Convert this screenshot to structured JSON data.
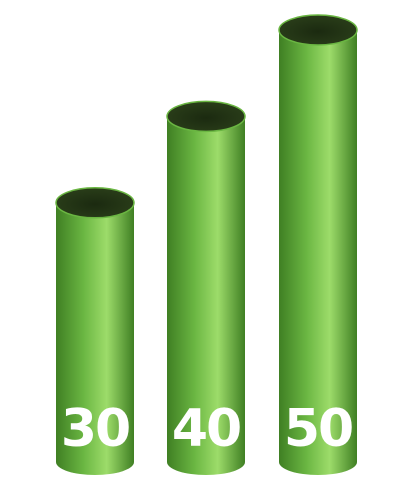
{
  "chart_data": {
    "type": "bar",
    "style": "3d-cylinder",
    "categories": [
      "",
      "",
      ""
    ],
    "values": [
      30,
      40,
      50
    ],
    "labels": [
      "30",
      "40",
      "50"
    ],
    "title": "",
    "xlabel": "",
    "ylabel": "",
    "ylim": [
      0,
      50
    ],
    "grid": false,
    "legend": "none"
  },
  "colors": {
    "bar_body": "#6ab642",
    "bar_highlight": "#9ddc6a",
    "bar_shadow": "#3f7f23",
    "bar_top": "#2b3f1a",
    "label": "#ffffff",
    "background": "#ffffff"
  }
}
